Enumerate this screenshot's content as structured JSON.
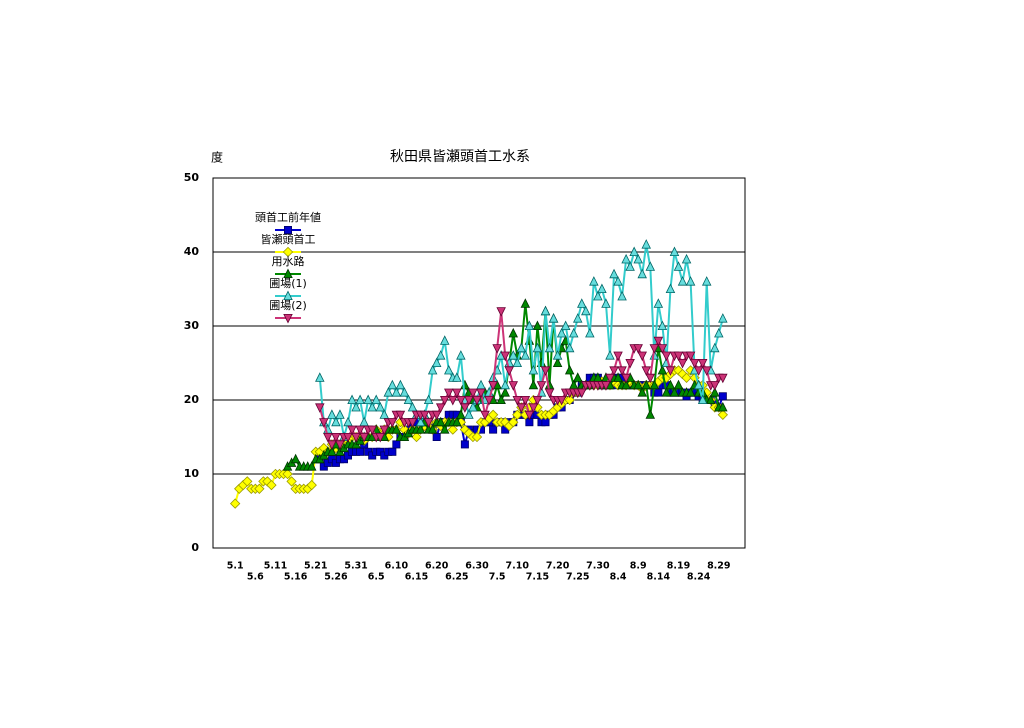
{
  "chart_data": {
    "type": "line",
    "title": "秋田県皆瀬頭首工水系",
    "y_label": "度",
    "ylim": [
      0,
      50
    ],
    "yticks": [
      0,
      10,
      20,
      30,
      40,
      50
    ],
    "grid": true,
    "legend": "upper left",
    "categories": [
      null,
      null,
      null,
      null,
      null,
      "5.1",
      null,
      null,
      null,
      null,
      "5.6",
      null,
      null,
      null,
      null,
      "5.11",
      null,
      null,
      null,
      null,
      "5.16",
      null,
      null,
      null,
      null,
      "5.21",
      null,
      null,
      null,
      null,
      "5.26",
      null,
      null,
      null,
      null,
      "5.31",
      null,
      null,
      null,
      null,
      "6.5",
      null,
      null,
      null,
      null,
      "6.10",
      null,
      null,
      null,
      null,
      "6.15",
      null,
      null,
      null,
      null,
      "6.20",
      null,
      null,
      null,
      null,
      "6.25",
      null,
      null,
      null,
      null,
      "6.30",
      null,
      null,
      null,
      null,
      "7.5",
      null,
      null,
      null,
      null,
      "7.10",
      null,
      null,
      null,
      null,
      "7.15",
      null,
      null,
      null,
      null,
      "7.20",
      null,
      null,
      null,
      null,
      "7.25",
      null,
      null,
      null,
      null,
      "7.30",
      null,
      null,
      null,
      null,
      "8.4",
      null,
      null,
      null,
      null,
      "8.9",
      null,
      null,
      null,
      null,
      "8.14",
      null,
      null,
      null,
      null,
      "8.19",
      null,
      null,
      null,
      null,
      "8.24",
      null,
      null,
      null,
      null,
      "8.29",
      null,
      null,
      null,
      null,
      null,
      null
    ],
    "series": [
      {
        "name": "頭首工前年値",
        "color": "#0000cc",
        "marker": "square",
        "marker_edge": "#000066",
        "values": [
          null,
          null,
          null,
          null,
          null,
          null,
          null,
          null,
          null,
          null,
          null,
          null,
          null,
          null,
          null,
          null,
          null,
          null,
          null,
          null,
          null,
          null,
          null,
          null,
          null,
          null,
          12,
          11,
          11.5,
          12,
          11.5,
          12,
          12,
          12.5,
          13,
          13,
          13,
          14,
          13,
          12.5,
          13,
          13,
          12.5,
          13,
          13,
          14,
          15,
          15,
          16,
          17,
          17,
          18,
          17,
          17,
          16,
          15,
          17,
          17,
          18,
          18,
          18,
          17,
          14,
          16,
          15.5,
          16,
          16,
          17,
          17,
          16,
          17,
          17,
          16,
          17,
          17,
          18,
          18,
          18,
          17,
          18,
          18,
          17,
          17,
          18,
          18,
          19,
          19,
          20,
          20,
          21,
          21,
          22,
          22,
          23,
          23,
          23,
          22,
          22,
          22,
          22,
          23,
          23,
          22,
          22,
          22,
          22,
          22,
          22,
          22,
          21,
          21,
          22,
          22,
          21,
          21,
          21,
          21,
          20.5,
          21,
          21,
          20.5,
          20,
          20,
          20,
          19.5,
          19,
          20.5,
          null,
          null,
          null,
          null,
          null
        ]
      },
      {
        "name": "皆瀬頭首工",
        "color": "#ffff00",
        "marker": "diamond",
        "marker_edge": "#999900",
        "values": [
          null,
          null,
          null,
          null,
          null,
          6,
          8,
          8.5,
          9,
          8,
          8,
          8,
          9,
          9,
          8.5,
          10,
          10,
          10,
          10,
          9,
          8,
          8,
          8,
          8,
          8.5,
          13,
          13,
          13.5,
          13,
          14,
          13.5,
          14,
          14,
          14.5,
          15,
          15,
          15,
          14.5,
          15,
          15,
          16,
          15.5,
          16,
          15,
          16,
          16,
          17,
          16,
          15.5,
          16,
          15,
          16,
          16.5,
          17,
          16,
          17,
          16.5,
          17,
          17,
          16,
          17,
          17,
          16,
          15.5,
          15,
          15,
          17,
          17,
          17.5,
          18,
          17,
          17,
          17,
          16.5,
          17,
          18,
          19,
          18,
          19,
          20,
          19,
          18,
          18,
          18,
          18.5,
          19,
          19.5,
          20,
          20,
          21,
          21,
          21.5,
          22,
          22,
          22,
          22,
          22.5,
          22,
          22,
          22.5,
          22,
          22,
          22,
          22.5,
          22,
          22,
          21.5,
          22,
          22,
          22,
          22.5,
          23,
          23,
          23.5,
          24,
          24,
          23.5,
          23,
          24,
          23,
          22,
          22,
          21,
          20,
          19,
          19,
          18,
          null,
          null,
          null,
          null,
          null
        ]
      },
      {
        "name": "用水路",
        "color": "#008800",
        "marker": "triangle",
        "marker_edge": "#003300",
        "values": [
          null,
          null,
          null,
          null,
          null,
          null,
          null,
          null,
          null,
          null,
          null,
          null,
          null,
          null,
          null,
          null,
          null,
          null,
          11,
          11.5,
          12,
          11,
          11,
          11,
          11,
          12,
          12,
          12.5,
          13,
          13,
          14,
          13,
          13.5,
          14,
          14,
          14,
          14.5,
          15,
          15,
          15,
          16,
          15,
          15,
          16,
          16,
          16,
          15,
          15,
          15.5,
          16,
          16,
          16,
          17,
          16,
          16,
          17,
          17,
          16,
          17,
          17,
          17,
          18,
          22,
          21,
          20,
          19,
          20,
          21,
          21,
          20,
          22,
          20,
          21,
          25,
          29,
          26,
          27,
          33,
          28,
          22,
          30,
          25,
          32,
          22,
          31,
          25,
          27,
          28,
          24,
          22,
          23,
          22,
          22,
          22,
          23,
          23,
          22,
          23,
          22,
          23,
          23,
          22,
          22,
          23,
          22,
          22,
          21,
          22,
          18,
          22,
          27,
          24,
          21,
          22,
          21,
          22,
          21,
          21,
          21,
          22,
          21,
          21,
          20,
          20,
          21,
          19,
          19,
          null,
          null,
          null,
          null,
          null
        ]
      },
      {
        "name": "圃場(1)",
        "color": "#33cccc",
        "marker": "triangle",
        "marker_fill": "#66dddd",
        "marker_edge": "#006666",
        "values": [
          null,
          null,
          null,
          null,
          null,
          null,
          null,
          null,
          null,
          null,
          null,
          null,
          null,
          null,
          null,
          null,
          null,
          null,
          null,
          null,
          null,
          null,
          null,
          null,
          null,
          null,
          23,
          17,
          16,
          18,
          17,
          18,
          15,
          17,
          20,
          19,
          20,
          17,
          20,
          19,
          20,
          19,
          18,
          21,
          22,
          21,
          22,
          21,
          20,
          19,
          18,
          17,
          18,
          20,
          24,
          25,
          26,
          28,
          24,
          23,
          23,
          26,
          20,
          18,
          19,
          20,
          22,
          20,
          21,
          23,
          24,
          26,
          22,
          25,
          26,
          25,
          27,
          26,
          30,
          24,
          27,
          21,
          32,
          27,
          31,
          26,
          29,
          30,
          27,
          29,
          31,
          33,
          32,
          29,
          36,
          34,
          35,
          33,
          26,
          37,
          36,
          34,
          39,
          38,
          40,
          39,
          37,
          41,
          38,
          26,
          33,
          30,
          25,
          35,
          40,
          38,
          36,
          39,
          36,
          24,
          22,
          20,
          36,
          24,
          27,
          29,
          31,
          null,
          null,
          null,
          null,
          null
        ]
      },
      {
        "name": "圃場(2)",
        "color": "#cc3377",
        "marker": "triangle-down",
        "marker_edge": "#660033",
        "values": [
          null,
          null,
          null,
          null,
          null,
          null,
          null,
          null,
          null,
          null,
          null,
          null,
          null,
          null,
          null,
          null,
          null,
          null,
          null,
          null,
          null,
          null,
          null,
          null,
          null,
          null,
          19,
          17,
          15,
          14,
          15,
          14,
          15,
          15,
          16,
          15,
          16,
          15,
          16,
          16,
          15,
          15,
          16,
          17,
          17,
          18,
          18,
          17,
          17,
          17,
          18,
          18,
          18,
          17,
          18,
          18,
          19,
          20,
          21,
          20,
          21,
          20,
          19,
          20,
          21,
          20,
          21,
          18,
          20,
          22,
          27,
          32,
          26,
          24,
          22,
          20,
          19,
          20,
          18,
          19,
          20,
          22,
          24,
          21,
          20,
          20,
          20,
          21,
          21,
          21,
          21,
          21,
          22,
          22,
          22,
          22,
          22,
          22,
          23,
          24,
          26,
          24,
          23,
          25,
          27,
          27,
          26,
          24,
          23,
          27,
          28,
          27,
          26,
          24,
          26,
          26,
          25,
          26,
          26,
          25,
          24,
          25,
          24,
          22,
          22,
          23,
          23,
          null,
          null,
          null,
          null,
          null
        ]
      }
    ]
  }
}
